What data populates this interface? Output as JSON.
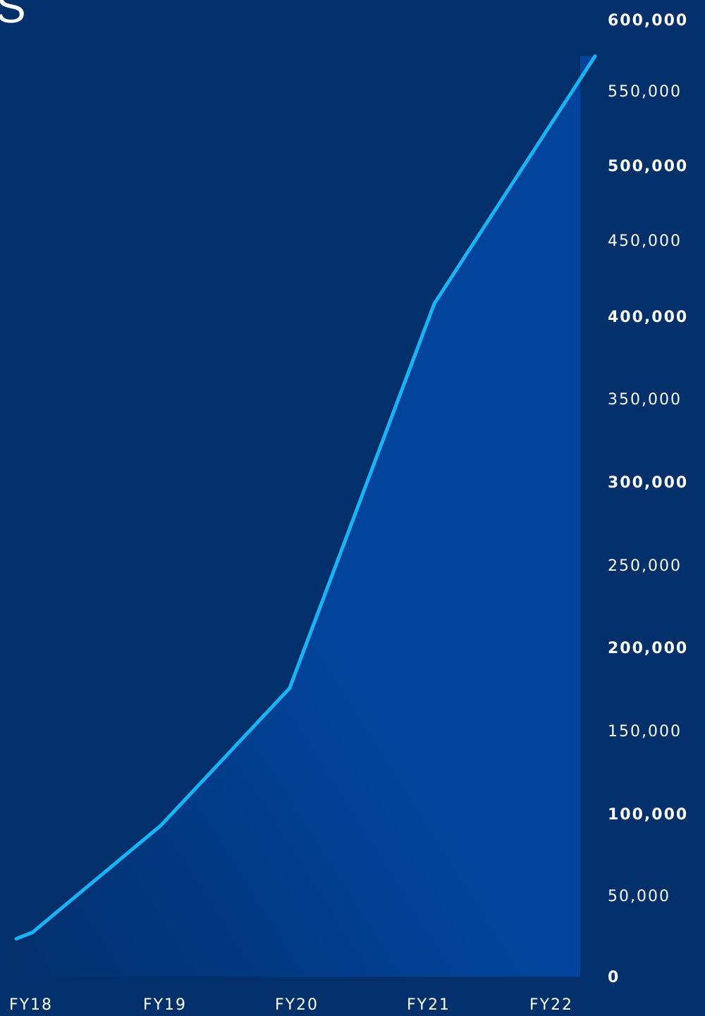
{
  "title_fragment": "S",
  "colors": {
    "background": "#02306a",
    "area_fill": "#02449b",
    "line": "#18b4f5",
    "text": "#ffffff"
  },
  "chart_data": {
    "type": "area",
    "title": "",
    "xlabel": "",
    "ylabel": "",
    "x_tick_labels": [
      "FY18",
      "FY19",
      "FY20",
      "FY21",
      "FY22"
    ],
    "y_tick_labels": [
      "0",
      "50,000",
      "100,000",
      "150,000",
      "200,000",
      "250,000",
      "300,000",
      "350,000",
      "400,000",
      "450,000",
      "500,000",
      "550,000",
      "600,000"
    ],
    "ylim": [
      0,
      600000
    ],
    "grid": false,
    "y_axis_position": "right",
    "series": [
      {
        "x": [
          17.9,
          18.0,
          18.8,
          19.6,
          20.5,
          21.5
        ],
        "values": [
          24000,
          28000,
          96000,
          183000,
          427000,
          584000
        ]
      }
    ]
  }
}
